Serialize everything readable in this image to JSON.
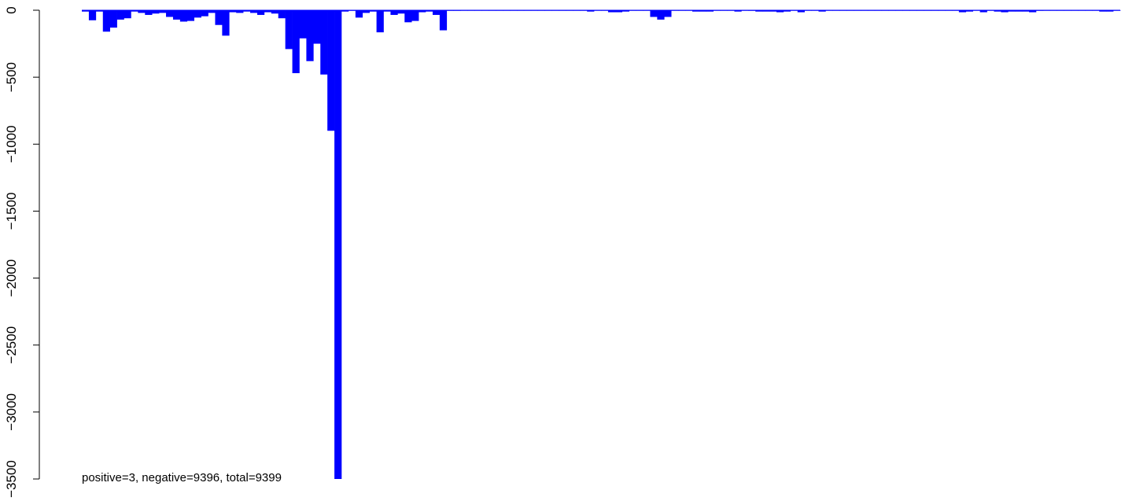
{
  "chart_data": {
    "type": "bar",
    "title": "",
    "xlabel": "",
    "ylabel": "",
    "ylim": [
      -3500,
      0
    ],
    "yticks": [
      0,
      -500,
      -1000,
      -1500,
      -2000,
      -2500,
      -3000,
      -3500
    ],
    "grid": false,
    "legend": "none",
    "annotation": "positive=3, negative=9396, total=9399",
    "bar_color": "#0000ff",
    "zero_line_color": "#0000ff",
    "values": [
      -10,
      -75,
      -10,
      -160,
      -130,
      -70,
      -60,
      -10,
      -20,
      -35,
      -25,
      -20,
      -50,
      -70,
      -85,
      -80,
      -55,
      -45,
      -20,
      -110,
      -190,
      -15,
      -20,
      -10,
      -20,
      -35,
      -15,
      -25,
      -60,
      -290,
      -470,
      -210,
      -380,
      -250,
      -480,
      -900,
      -3500,
      -10,
      -5,
      -55,
      -20,
      -10,
      -165,
      -10,
      -35,
      -25,
      -90,
      -80,
      -15,
      -10,
      -35,
      -150,
      -5,
      -5,
      -3,
      -3,
      -3,
      -3,
      -3,
      -3,
      -3,
      -3,
      -3,
      -3,
      -3,
      -3,
      -3,
      -3,
      -3,
      -3,
      -3,
      -3,
      -10,
      -3,
      -3,
      -15,
      -15,
      -10,
      -3,
      -3,
      -3,
      -50,
      -70,
      -50,
      -3,
      -3,
      -3,
      -10,
      -10,
      -10,
      -3,
      -3,
      -3,
      -10,
      -3,
      -5,
      -10,
      -10,
      -10,
      -15,
      -10,
      -3,
      -15,
      -3,
      -3,
      -10,
      -3,
      -3,
      -3,
      -3,
      -3,
      -3,
      -3,
      -3,
      -3,
      -3,
      -3,
      -3,
      -3,
      -3,
      -3,
      -3,
      -3,
      -3,
      -3,
      -15,
      -10,
      -3,
      -15,
      -3,
      -10,
      -15,
      -10,
      -10,
      -10,
      -15,
      -5,
      -3,
      -3,
      -3,
      -3,
      -3,
      -3,
      -3,
      -3,
      -10,
      -10,
      -3
    ]
  }
}
